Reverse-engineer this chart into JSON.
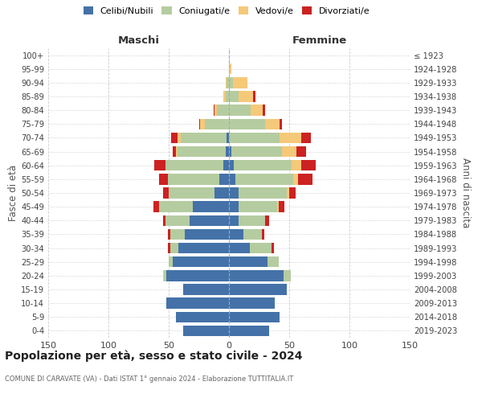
{
  "age_groups": [
    "0-4",
    "5-9",
    "10-14",
    "15-19",
    "20-24",
    "25-29",
    "30-34",
    "35-39",
    "40-44",
    "45-49",
    "50-54",
    "55-59",
    "60-64",
    "65-69",
    "70-74",
    "75-79",
    "80-84",
    "85-89",
    "90-94",
    "95-99",
    "100+"
  ],
  "birth_years": [
    "2019-2023",
    "2014-2018",
    "2009-2013",
    "2004-2008",
    "1999-2003",
    "1994-1998",
    "1989-1993",
    "1984-1988",
    "1979-1983",
    "1974-1978",
    "1969-1973",
    "1964-1968",
    "1959-1963",
    "1954-1958",
    "1949-1953",
    "1944-1948",
    "1939-1943",
    "1934-1938",
    "1929-1933",
    "1924-1928",
    "≤ 1923"
  ],
  "maschi": {
    "celibi": [
      38,
      44,
      52,
      38,
      52,
      47,
      42,
      37,
      33,
      30,
      12,
      8,
      5,
      3,
      2,
      0,
      0,
      0,
      0,
      0,
      0
    ],
    "coniugati": [
      0,
      0,
      0,
      0,
      2,
      3,
      7,
      12,
      20,
      28,
      38,
      43,
      48,
      40,
      38,
      20,
      10,
      3,
      2,
      0,
      0
    ],
    "vedovi": [
      0,
      0,
      0,
      0,
      1,
      0,
      0,
      0,
      0,
      0,
      0,
      0,
      0,
      1,
      3,
      4,
      2,
      2,
      1,
      0,
      0
    ],
    "divorziati": [
      0,
      0,
      0,
      0,
      0,
      0,
      2,
      2,
      2,
      5,
      5,
      7,
      9,
      3,
      5,
      1,
      1,
      0,
      0,
      0,
      0
    ]
  },
  "femmine": {
    "nubili": [
      33,
      42,
      38,
      48,
      45,
      32,
      17,
      12,
      8,
      8,
      8,
      5,
      4,
      2,
      0,
      0,
      0,
      0,
      0,
      0,
      0
    ],
    "coniugate": [
      0,
      0,
      0,
      0,
      6,
      9,
      18,
      15,
      22,
      32,
      40,
      48,
      48,
      42,
      42,
      30,
      18,
      8,
      3,
      0,
      0
    ],
    "vedove": [
      0,
      0,
      0,
      0,
      0,
      0,
      0,
      0,
      0,
      1,
      2,
      4,
      8,
      12,
      18,
      12,
      10,
      12,
      12,
      2,
      0
    ],
    "divorziate": [
      0,
      0,
      0,
      0,
      0,
      0,
      2,
      2,
      3,
      5,
      5,
      12,
      12,
      8,
      8,
      2,
      2,
      2,
      0,
      0,
      0
    ]
  },
  "colors": {
    "celibi": "#4472a8",
    "coniugati": "#b5cca0",
    "vedovi": "#f5c97a",
    "divorziati": "#cc2222"
  },
  "xlim": 150,
  "title": "Popolazione per età, sesso e stato civile - 2024",
  "subtitle": "COMUNE DI CARAVATE (VA) - Dati ISTAT 1° gennaio 2024 - Elaborazione TUTTITALIA.IT",
  "ylabel_left": "Fasce di età",
  "ylabel_right": "Anni di nascita",
  "xlabel_left": "Maschi",
  "xlabel_right": "Femmine"
}
